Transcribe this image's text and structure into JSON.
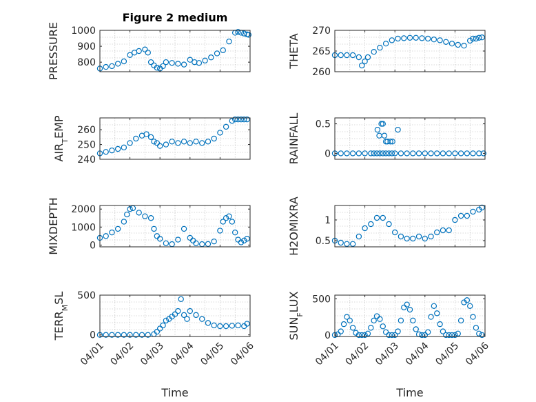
{
  "figure": {
    "title": "Figure 2 medium",
    "accent_color": "#0072BD"
  },
  "chart_data": [
    {
      "id": "pressure",
      "type": "scatter",
      "title": "Figure 2 medium",
      "ylabel": "PRESSURE",
      "ylabel_sub": null,
      "xlabel": "",
      "ylim": [
        740,
        1000
      ],
      "yticks": [
        800,
        900,
        1000
      ],
      "ytick_labels": [
        "800",
        "900",
        "1000"
      ],
      "xlim": [
        0,
        5
      ],
      "xticks": [
        0,
        1,
        2,
        3,
        4,
        5
      ],
      "xtick_labels": [],
      "grid": true,
      "series": [
        {
          "x": [
            0.0,
            0.2,
            0.4,
            0.6,
            0.8,
            1.0,
            1.15,
            1.3,
            1.5,
            1.6,
            1.7,
            1.8,
            1.9,
            2.0,
            2.1,
            2.2,
            2.4,
            2.6,
            2.8,
            3.0,
            3.15,
            3.3,
            3.5,
            3.7,
            3.9,
            4.1,
            4.3,
            4.5,
            4.6,
            4.7,
            4.8,
            4.9,
            4.95
          ],
          "y": [
            760,
            770,
            775,
            790,
            805,
            845,
            860,
            870,
            880,
            860,
            800,
            780,
            765,
            760,
            775,
            800,
            795,
            790,
            785,
            815,
            800,
            795,
            810,
            830,
            855,
            875,
            930,
            985,
            990,
            985,
            980,
            975,
            972
          ]
        }
      ]
    },
    {
      "id": "theta",
      "type": "scatter",
      "title": "",
      "ylabel": "THETA",
      "ylabel_sub": null,
      "xlabel": "",
      "ylim": [
        260,
        270
      ],
      "yticks": [
        260,
        265,
        270
      ],
      "ytick_labels": [
        "260",
        "265",
        "270"
      ],
      "xlim": [
        0,
        5
      ],
      "xticks": [
        0,
        1,
        2,
        3,
        4,
        5
      ],
      "xtick_labels": [],
      "grid": true,
      "series": [
        {
          "x": [
            0.0,
            0.2,
            0.4,
            0.6,
            0.8,
            0.9,
            1.0,
            1.1,
            1.3,
            1.5,
            1.7,
            1.9,
            2.1,
            2.3,
            2.5,
            2.7,
            2.9,
            3.1,
            3.3,
            3.5,
            3.7,
            3.9,
            4.1,
            4.3,
            4.5,
            4.6,
            4.7,
            4.8,
            4.9
          ],
          "y": [
            264,
            264,
            264,
            264,
            263.5,
            261.5,
            262.5,
            263.5,
            264.8,
            265.8,
            266.8,
            267.6,
            268,
            268.1,
            268.2,
            268.2,
            268.1,
            268,
            267.8,
            267.6,
            267.2,
            266.8,
            266.5,
            266.3,
            267.5,
            268,
            268,
            268.2,
            268.3
          ]
        }
      ]
    },
    {
      "id": "airtemp",
      "type": "scatter",
      "title": "",
      "ylabel": "AIR",
      "ylabel_sub": "T",
      "ylabel_tail": "EMP",
      "xlabel": "",
      "ylim": [
        240,
        268
      ],
      "yticks": [
        240,
        250,
        260
      ],
      "ytick_labels": [
        "240",
        "250",
        "260"
      ],
      "xlim": [
        0,
        5
      ],
      "xticks": [
        0,
        1,
        2,
        3,
        4,
        5
      ],
      "xtick_labels": [],
      "grid": true,
      "series": [
        {
          "x": [
            0.0,
            0.2,
            0.4,
            0.6,
            0.8,
            1.0,
            1.2,
            1.4,
            1.55,
            1.7,
            1.8,
            1.9,
            2.0,
            2.2,
            2.4,
            2.6,
            2.8,
            3.0,
            3.2,
            3.4,
            3.6,
            3.8,
            4.0,
            4.2,
            4.4,
            4.5,
            4.6,
            4.7,
            4.8,
            4.9
          ],
          "y": [
            244,
            245,
            246,
            247,
            248,
            251,
            254,
            256,
            257,
            255,
            252,
            251,
            249,
            250,
            252,
            251,
            252,
            251,
            252,
            251,
            252,
            254,
            258,
            262,
            266,
            267,
            267,
            267,
            267,
            267
          ]
        }
      ]
    },
    {
      "id": "rainfall",
      "type": "scatter",
      "title": "",
      "ylabel": "RAINFALL",
      "ylabel_sub": null,
      "xlabel": "",
      "ylim": [
        -0.1,
        0.6
      ],
      "yticks": [
        0,
        0.5
      ],
      "ytick_labels": [
        "0",
        "0.5"
      ],
      "xlim": [
        0,
        5
      ],
      "xticks": [
        0,
        1,
        2,
        3,
        4,
        5
      ],
      "xtick_labels": [],
      "grid": true,
      "series": [
        {
          "x": [
            0.0,
            0.2,
            0.4,
            0.6,
            0.8,
            1.0,
            1.2,
            1.3,
            1.4,
            1.5,
            1.6,
            1.7,
            1.8,
            1.9,
            2.0,
            2.2,
            2.4,
            2.6,
            2.8,
            3.0,
            3.2,
            3.4,
            3.6,
            3.8,
            4.0,
            4.2,
            4.4,
            4.6,
            4.8,
            4.95,
            1.42,
            1.48,
            1.55,
            1.6,
            1.65,
            1.7,
            1.75,
            1.85,
            1.92,
            2.1
          ],
          "y": [
            0,
            0,
            0,
            0,
            0,
            0,
            0,
            0,
            0,
            0,
            0,
            0,
            0,
            0,
            0,
            0,
            0,
            0,
            0,
            0,
            0,
            0,
            0,
            0,
            0,
            0,
            0,
            0,
            0,
            0,
            0.4,
            0.3,
            0.5,
            0.5,
            0.3,
            0.2,
            0.2,
            0.2,
            0.2,
            0.4
          ]
        }
      ]
    },
    {
      "id": "mixdepth",
      "type": "scatter",
      "title": "",
      "ylabel": "MIXDEPTH",
      "ylabel_sub": null,
      "xlabel": "",
      "ylim": [
        -100,
        2200
      ],
      "yticks": [
        0,
        1000,
        2000
      ],
      "ytick_labels": [
        "0",
        "1000",
        "2000"
      ],
      "xlim": [
        0,
        5
      ],
      "xticks": [
        0,
        1,
        2,
        3,
        4,
        5
      ],
      "xtick_labels": [],
      "grid": true,
      "series": [
        {
          "x": [
            0.0,
            0.2,
            0.4,
            0.6,
            0.8,
            0.9,
            1.0,
            1.1,
            1.3,
            1.5,
            1.7,
            1.8,
            1.9,
            2.0,
            2.2,
            2.4,
            2.6,
            2.8,
            3.0,
            3.1,
            3.2,
            3.4,
            3.6,
            3.8,
            4.0,
            4.1,
            4.2,
            4.3,
            4.4,
            4.5,
            4.6,
            4.7,
            4.8,
            4.9
          ],
          "y": [
            400,
            500,
            700,
            900,
            1300,
            1700,
            2000,
            2050,
            1800,
            1600,
            1500,
            900,
            500,
            350,
            100,
            50,
            300,
            900,
            400,
            250,
            100,
            50,
            60,
            200,
            800,
            1300,
            1500,
            1600,
            1300,
            700,
            300,
            150,
            250,
            350
          ]
        }
      ]
    },
    {
      "id": "h2omixra",
      "type": "scatter",
      "title": "",
      "ylabel": "H2OMIXRA",
      "ylabel_sub": null,
      "xlabel": "",
      "ylim": [
        0.35,
        1.35
      ],
      "yticks": [
        0.5,
        1
      ],
      "ytick_labels": [
        "0.5",
        "1"
      ],
      "xlim": [
        0,
        5
      ],
      "xticks": [
        0,
        1,
        2,
        3,
        4,
        5
      ],
      "xtick_labels": [],
      "grid": true,
      "series": [
        {
          "x": [
            0.0,
            0.2,
            0.4,
            0.6,
            0.8,
            1.0,
            1.2,
            1.4,
            1.6,
            1.8,
            2.0,
            2.2,
            2.4,
            2.6,
            2.8,
            3.0,
            3.2,
            3.4,
            3.6,
            3.8,
            4.0,
            4.2,
            4.4,
            4.6,
            4.8,
            4.9
          ],
          "y": [
            0.5,
            0.45,
            0.42,
            0.42,
            0.6,
            0.8,
            0.9,
            1.05,
            1.05,
            0.9,
            0.7,
            0.6,
            0.55,
            0.55,
            0.6,
            0.55,
            0.6,
            0.7,
            0.75,
            0.75,
            1.0,
            1.1,
            1.1,
            1.2,
            1.25,
            1.3
          ]
        }
      ]
    },
    {
      "id": "terrmsl",
      "type": "scatter",
      "title": "",
      "ylabel": "TERR",
      "ylabel_sub": "M",
      "ylabel_tail": "SL",
      "xlabel": "Time",
      "ylim": [
        -20,
        500
      ],
      "yticks": [
        0,
        500
      ],
      "ytick_labels": [
        "0",
        "500"
      ],
      "xlim": [
        0,
        5
      ],
      "xticks": [
        0,
        1,
        2,
        3,
        4,
        5
      ],
      "xtick_labels": [
        "04/01",
        "04/02",
        "04/03",
        "04/04",
        "04/05",
        "04/06"
      ],
      "grid": true,
      "series": [
        {
          "x": [
            0.0,
            0.2,
            0.4,
            0.6,
            0.8,
            1.0,
            1.2,
            1.4,
            1.6,
            1.8,
            1.9,
            2.0,
            2.1,
            2.2,
            2.3,
            2.4,
            2.5,
            2.6,
            2.7,
            2.8,
            2.9,
            3.0,
            3.2,
            3.4,
            3.6,
            3.8,
            4.0,
            4.2,
            4.4,
            4.6,
            4.8,
            4.9
          ],
          "y": [
            0,
            0,
            0,
            0,
            0,
            0,
            0,
            0,
            0,
            10,
            40,
            80,
            120,
            180,
            200,
            230,
            260,
            300,
            450,
            250,
            200,
            300,
            250,
            200,
            150,
            120,
            110,
            110,
            115,
            120,
            110,
            140
          ]
        }
      ]
    },
    {
      "id": "sunflux",
      "type": "scatter",
      "title": "",
      "ylabel": "SUN",
      "ylabel_sub": "F",
      "ylabel_tail": "LUX",
      "xlabel": "Time",
      "ylim": [
        -20,
        550
      ],
      "yticks": [
        0,
        500
      ],
      "ytick_labels": [
        "0",
        "500"
      ],
      "xlim": [
        0,
        5
      ],
      "xticks": [
        0,
        1,
        2,
        3,
        4,
        5
      ],
      "xtick_labels": [
        "04/01",
        "04/02",
        "04/03",
        "04/04",
        "04/05",
        "04/06"
      ],
      "grid": true,
      "series": [
        {
          "x": [
            0.0,
            0.1,
            0.2,
            0.3,
            0.4,
            0.5,
            0.6,
            0.7,
            0.8,
            0.9,
            1.0,
            1.1,
            1.2,
            1.3,
            1.4,
            1.5,
            1.6,
            1.7,
            1.8,
            1.9,
            2.0,
            2.1,
            2.2,
            2.3,
            2.4,
            2.5,
            2.6,
            2.7,
            2.8,
            2.9,
            3.0,
            3.1,
            3.2,
            3.3,
            3.4,
            3.5,
            3.6,
            3.7,
            3.8,
            3.9,
            4.0,
            4.1,
            4.2,
            4.3,
            4.4,
            4.5,
            4.6,
            4.7,
            4.8,
            4.9
          ],
          "y": [
            0,
            10,
            50,
            150,
            250,
            200,
            100,
            30,
            0,
            0,
            0,
            20,
            100,
            200,
            260,
            220,
            120,
            40,
            0,
            0,
            0,
            50,
            200,
            380,
            420,
            350,
            200,
            80,
            10,
            0,
            0,
            40,
            250,
            400,
            300,
            150,
            50,
            0,
            0,
            0,
            0,
            20,
            200,
            450,
            480,
            400,
            250,
            100,
            20,
            0
          ]
        }
      ]
    }
  ]
}
